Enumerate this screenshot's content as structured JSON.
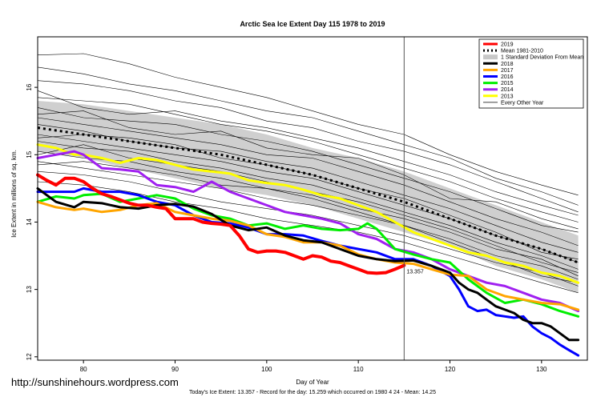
{
  "watermark": "http://sunshinehours.wordpress.com",
  "chart_data": {
    "type": "line",
    "title": "Arctic Sea Ice Extent Day 115 1978 to 2019",
    "xlabel": "Day of Year",
    "ylabel": "Ice Extent in millions of sq. km.",
    "footer": "Today's Ice Extent: 13.357  - Record for the day: 15.259 which occurred on 1980 4 24  - Mean: 14.25",
    "xlim": [
      75,
      135
    ],
    "ylim": [
      11.95,
      16.75
    ],
    "xticks": [
      80,
      90,
      100,
      110,
      120,
      130
    ],
    "yticks": [
      12,
      13,
      14,
      15,
      16
    ],
    "vline_x": 115,
    "today_label": "13.357",
    "legend_position": "top-right",
    "legend": [
      {
        "label": "2019",
        "color": "#ff0000",
        "style": "thick"
      },
      {
        "label": "Mean 1981-2010",
        "color": "#000000",
        "style": "dotted"
      },
      {
        "label": "1 Standard Deviation From Mean",
        "color": "#c8c8c8",
        "style": "band"
      },
      {
        "label": "2018",
        "color": "#000000",
        "style": "thick"
      },
      {
        "label": "2017",
        "color": "#ffa500",
        "style": "thick"
      },
      {
        "label": "2016",
        "color": "#0000ff",
        "style": "thick"
      },
      {
        "label": "2015",
        "color": "#00ee00",
        "style": "thick"
      },
      {
        "label": "2014",
        "color": "#a020f0",
        "style": "thick"
      },
      {
        "label": "2013",
        "color": "#ffff00",
        "style": "thick"
      },
      {
        "label": "Every Other Year",
        "color": "#000000",
        "style": "thin"
      }
    ],
    "mean": {
      "x": [
        75,
        80,
        85,
        90,
        95,
        100,
        105,
        110,
        115,
        120,
        125,
        130,
        134
      ],
      "y": [
        15.4,
        15.3,
        15.2,
        15.1,
        15.0,
        14.85,
        14.7,
        14.5,
        14.3,
        14.05,
        13.8,
        13.6,
        13.4
      ]
    },
    "std_band": {
      "x": [
        75,
        80,
        85,
        90,
        95,
        100,
        105,
        110,
        115,
        120,
        125,
        130,
        134
      ],
      "upper": [
        15.8,
        15.75,
        15.65,
        15.55,
        15.45,
        15.3,
        15.1,
        14.95,
        14.75,
        14.5,
        14.25,
        14.0,
        13.8
      ],
      "lower": [
        15.05,
        14.95,
        14.8,
        14.65,
        14.5,
        14.4,
        14.25,
        14.05,
        13.85,
        13.65,
        13.35,
        13.15,
        12.95
      ]
    },
    "series": [
      {
        "name": "2019",
        "color": "#ff0000",
        "width": 4,
        "x": [
          75,
          76,
          77,
          78,
          79,
          80,
          81,
          82,
          83,
          84,
          85,
          86,
          87,
          88,
          89,
          90,
          91,
          92,
          93,
          94,
          95,
          96,
          97,
          98,
          99,
          100,
          101,
          102,
          103,
          104,
          105,
          106,
          107,
          108,
          109,
          110,
          111,
          112,
          113,
          114,
          115
        ],
        "y": [
          14.7,
          14.62,
          14.55,
          14.65,
          14.65,
          14.6,
          14.5,
          14.42,
          14.38,
          14.33,
          14.28,
          14.25,
          14.25,
          14.22,
          14.2,
          14.05,
          14.05,
          14.05,
          14.0,
          13.98,
          13.97,
          13.95,
          13.8,
          13.6,
          13.55,
          13.57,
          13.57,
          13.55,
          13.5,
          13.45,
          13.5,
          13.48,
          13.42,
          13.4,
          13.35,
          13.3,
          13.25,
          13.24,
          13.25,
          13.3,
          13.357
        ]
      },
      {
        "name": "2018",
        "color": "#000000",
        "width": 3,
        "x": [
          75,
          77,
          79,
          80,
          82,
          84,
          86,
          88,
          90,
          92,
          94,
          96,
          98,
          100,
          102,
          104,
          106,
          108,
          110,
          112,
          114,
          116,
          118,
          119,
          120,
          121,
          122,
          123,
          124,
          125,
          126,
          127,
          128,
          129,
          130,
          131,
          132,
          133,
          134
        ],
        "y": [
          14.5,
          14.3,
          14.22,
          14.3,
          14.28,
          14.22,
          14.2,
          14.25,
          14.27,
          14.23,
          14.12,
          13.95,
          13.88,
          13.92,
          13.8,
          13.73,
          13.7,
          13.6,
          13.5,
          13.45,
          13.42,
          13.43,
          13.35,
          13.3,
          13.25,
          13.1,
          13.0,
          12.95,
          12.85,
          12.75,
          12.7,
          12.65,
          12.55,
          12.5,
          12.5,
          12.45,
          12.35,
          12.25,
          12.25
        ]
      },
      {
        "name": "2017",
        "color": "#ffa500",
        "width": 3,
        "x": [
          75,
          77,
          79,
          80,
          82,
          84,
          86,
          88,
          90,
          92,
          94,
          96,
          98,
          100,
          102,
          104,
          106,
          108,
          110,
          112,
          114,
          116,
          118,
          120,
          122,
          124,
          126,
          128,
          130,
          132,
          134
        ],
        "y": [
          14.3,
          14.22,
          14.18,
          14.2,
          14.15,
          14.18,
          14.25,
          14.28,
          14.15,
          14.1,
          14.05,
          14.02,
          13.95,
          13.82,
          13.78,
          13.7,
          13.7,
          13.65,
          13.52,
          13.45,
          13.4,
          13.38,
          13.3,
          13.22,
          13.2,
          13.0,
          12.9,
          12.85,
          12.8,
          12.78,
          12.7
        ]
      },
      {
        "name": "2016",
        "color": "#0000ff",
        "width": 3,
        "x": [
          75,
          77,
          79,
          80,
          82,
          84,
          86,
          88,
          90,
          92,
          94,
          96,
          98,
          100,
          102,
          104,
          106,
          108,
          110,
          112,
          114,
          116,
          118,
          120,
          121,
          122,
          123,
          124,
          125,
          126,
          127,
          128,
          129,
          130,
          131,
          132,
          133,
          134
        ],
        "y": [
          14.45,
          14.45,
          14.45,
          14.5,
          14.45,
          14.45,
          14.4,
          14.3,
          14.25,
          14.1,
          14.0,
          13.98,
          13.92,
          13.82,
          13.82,
          13.8,
          13.72,
          13.65,
          13.6,
          13.55,
          13.45,
          13.45,
          13.35,
          13.2,
          13.0,
          12.75,
          12.68,
          12.7,
          12.62,
          12.6,
          12.58,
          12.6,
          12.45,
          12.35,
          12.28,
          12.18,
          12.1,
          12.02
        ]
      },
      {
        "name": "2015",
        "color": "#00ee00",
        "width": 3,
        "x": [
          75,
          77,
          79,
          80,
          82,
          84,
          86,
          88,
          90,
          92,
          94,
          96,
          98,
          100,
          102,
          104,
          106,
          108,
          110,
          111,
          112,
          113,
          114,
          116,
          118,
          120,
          122,
          124,
          126,
          128,
          130,
          132,
          134
        ],
        "y": [
          14.3,
          14.38,
          14.35,
          14.4,
          14.42,
          14.3,
          14.35,
          14.4,
          14.35,
          14.2,
          14.1,
          14.05,
          13.95,
          13.98,
          13.9,
          13.95,
          13.9,
          13.88,
          13.9,
          13.98,
          13.9,
          13.75,
          13.6,
          13.52,
          13.45,
          13.4,
          13.15,
          12.95,
          12.8,
          12.85,
          12.78,
          12.68,
          12.6
        ]
      },
      {
        "name": "2014",
        "color": "#a020f0",
        "width": 3,
        "x": [
          75,
          77,
          79,
          80,
          82,
          84,
          86,
          88,
          90,
          92,
          94,
          96,
          98,
          100,
          102,
          104,
          106,
          108,
          110,
          112,
          114,
          116,
          118,
          120,
          122,
          124,
          126,
          128,
          130,
          132,
          134
        ],
        "y": [
          14.95,
          15.0,
          15.05,
          15.0,
          14.8,
          14.78,
          14.75,
          14.55,
          14.52,
          14.45,
          14.6,
          14.45,
          14.35,
          14.25,
          14.15,
          14.1,
          14.05,
          13.98,
          13.82,
          13.75,
          13.6,
          13.55,
          13.45,
          13.3,
          13.2,
          13.1,
          13.05,
          12.95,
          12.85,
          12.8,
          12.68
        ]
      },
      {
        "name": "2013",
        "color": "#ffff00",
        "width": 3,
        "x": [
          75,
          77,
          79,
          80,
          82,
          84,
          86,
          88,
          90,
          92,
          94,
          96,
          98,
          100,
          102,
          104,
          106,
          108,
          110,
          112,
          114,
          116,
          118,
          120,
          122,
          124,
          126,
          128,
          130,
          132,
          134
        ],
        "y": [
          15.15,
          15.1,
          15.0,
          15.0,
          14.95,
          14.88,
          14.95,
          14.92,
          14.85,
          14.78,
          14.75,
          14.72,
          14.62,
          14.58,
          14.55,
          14.48,
          14.4,
          14.35,
          14.25,
          14.15,
          14.0,
          13.85,
          13.75,
          13.65,
          13.55,
          13.5,
          13.4,
          13.35,
          13.25,
          13.2,
          13.1
        ]
      }
    ],
    "every_other_year": [
      {
        "x": [
          75,
          80,
          85,
          90,
          95,
          100,
          105,
          110,
          115,
          120,
          125,
          130,
          134
        ],
        "y": [
          16.48,
          16.5,
          16.35,
          16.15,
          16.0,
          15.85,
          15.65,
          15.45,
          15.3,
          15.0,
          14.75,
          14.55,
          14.4
        ]
      },
      {
        "x": [
          75,
          80,
          85,
          90,
          95,
          100,
          105,
          110,
          115,
          120,
          125,
          130,
          134
        ],
        "y": [
          16.1,
          16.05,
          15.95,
          15.8,
          15.7,
          15.5,
          15.4,
          15.2,
          15.05,
          14.85,
          14.6,
          14.35,
          14.15
        ]
      },
      {
        "x": [
          75,
          80,
          85,
          90,
          95,
          100,
          105,
          110,
          115,
          120,
          125,
          130,
          134
        ],
        "y": [
          15.85,
          15.8,
          15.75,
          15.6,
          15.45,
          15.35,
          15.2,
          15.0,
          14.8,
          14.6,
          14.35,
          14.15,
          14.0
        ]
      },
      {
        "x": [
          75,
          80,
          85,
          90,
          95,
          100,
          105,
          110,
          115,
          120,
          125,
          130,
          134
        ],
        "y": [
          15.7,
          15.55,
          15.5,
          15.45,
          15.3,
          15.2,
          15.05,
          14.85,
          14.65,
          14.45,
          14.2,
          13.95,
          13.85
        ]
      },
      {
        "x": [
          75,
          80,
          85,
          90,
          95,
          100,
          105,
          110,
          115,
          120,
          125,
          130,
          134
        ],
        "y": [
          15.55,
          15.45,
          15.35,
          15.25,
          15.15,
          15.0,
          14.95,
          14.75,
          14.55,
          14.3,
          14.05,
          13.85,
          13.65
        ]
      },
      {
        "x": [
          75,
          80,
          85,
          90,
          95,
          100,
          105,
          110,
          115,
          120,
          125,
          130,
          134
        ],
        "y": [
          15.45,
          15.35,
          15.2,
          15.1,
          15.05,
          14.9,
          14.8,
          14.6,
          14.4,
          14.2,
          13.95,
          13.7,
          13.55
        ]
      },
      {
        "x": [
          75,
          80,
          85,
          90,
          95,
          100,
          105,
          110,
          115,
          120,
          125,
          130,
          134
        ],
        "y": [
          15.3,
          15.2,
          15.1,
          15.0,
          14.9,
          14.75,
          14.65,
          14.45,
          14.25,
          14.05,
          13.8,
          13.6,
          13.4
        ]
      },
      {
        "x": [
          75,
          80,
          85,
          90,
          95,
          100,
          105,
          110,
          115,
          120,
          125,
          130,
          134
        ],
        "y": [
          15.2,
          15.1,
          15.05,
          14.9,
          14.8,
          14.65,
          14.55,
          14.35,
          14.15,
          13.95,
          13.7,
          13.5,
          13.3
        ]
      },
      {
        "x": [
          75,
          80,
          85,
          90,
          95,
          100,
          105,
          110,
          115,
          120,
          125,
          130,
          134
        ],
        "y": [
          15.05,
          14.95,
          14.9,
          14.75,
          14.65,
          14.5,
          14.4,
          14.2,
          14.05,
          13.85,
          13.6,
          13.45,
          13.2
        ]
      },
      {
        "x": [
          75,
          80,
          85,
          90,
          95,
          100,
          105,
          110,
          115,
          120,
          125,
          130,
          134
        ],
        "y": [
          14.9,
          14.8,
          14.7,
          14.6,
          14.5,
          14.35,
          14.25,
          14.1,
          13.95,
          13.75,
          13.5,
          13.35,
          13.15
        ]
      },
      {
        "x": [
          75,
          80,
          85,
          90,
          95,
          100,
          105,
          110,
          115,
          120,
          125,
          130,
          134
        ],
        "y": [
          14.75,
          14.7,
          14.6,
          14.45,
          14.3,
          14.2,
          14.1,
          13.95,
          13.8,
          13.6,
          13.4,
          13.25,
          13.05
        ]
      },
      {
        "x": [
          75,
          80,
          85,
          90,
          95,
          100,
          105,
          110,
          115,
          120,
          125,
          130,
          134
        ],
        "y": [
          14.6,
          14.55,
          14.45,
          14.3,
          14.2,
          14.05,
          13.95,
          13.85,
          13.7,
          13.5,
          13.3,
          13.1,
          12.95
        ]
      },
      {
        "x": [
          75,
          80,
          85,
          90,
          95,
          100,
          105,
          110,
          115,
          120,
          125,
          130,
          134
        ],
        "y": [
          15.6,
          15.65,
          15.4,
          15.3,
          15.35,
          15.1,
          15.0,
          14.95,
          14.7,
          14.35,
          14.3,
          14.05,
          13.9
        ]
      },
      {
        "x": [
          75,
          80,
          85,
          90,
          95,
          100,
          105,
          110,
          115,
          120,
          125,
          130,
          134
        ],
        "y": [
          15.95,
          15.7,
          15.6,
          15.65,
          15.5,
          15.4,
          15.25,
          15.1,
          14.9,
          14.7,
          14.45,
          14.25,
          14.1
        ]
      },
      {
        "x": [
          75,
          80,
          85,
          90,
          95,
          100,
          105,
          110,
          115,
          120,
          125,
          130,
          134
        ],
        "y": [
          15.25,
          15.3,
          15.25,
          15.15,
          14.95,
          14.85,
          14.7,
          14.5,
          14.35,
          14.1,
          13.85,
          13.55,
          13.45
        ]
      },
      {
        "x": [
          75,
          80,
          85,
          90,
          95,
          100,
          105,
          110,
          115,
          120,
          125,
          130,
          134
        ],
        "y": [
          15.0,
          15.15,
          14.95,
          14.85,
          14.75,
          14.6,
          14.45,
          14.3,
          14.1,
          13.9,
          13.65,
          13.4,
          13.25
        ]
      },
      {
        "x": [
          75,
          80,
          85,
          90,
          95,
          100,
          105,
          110,
          115,
          120,
          125,
          130,
          134
        ],
        "y": [
          14.85,
          14.9,
          14.8,
          14.7,
          14.55,
          14.5,
          14.35,
          14.15,
          13.95,
          13.7,
          13.45,
          13.2,
          13.1
        ]
      },
      {
        "x": [
          75,
          80,
          85,
          90,
          95,
          100,
          105,
          110,
          115,
          120,
          125,
          130,
          134
        ],
        "y": [
          16.3,
          16.2,
          16.05,
          15.95,
          15.8,
          15.65,
          15.55,
          15.35,
          15.15,
          14.95,
          14.65,
          14.45,
          14.25
        ]
      }
    ]
  }
}
